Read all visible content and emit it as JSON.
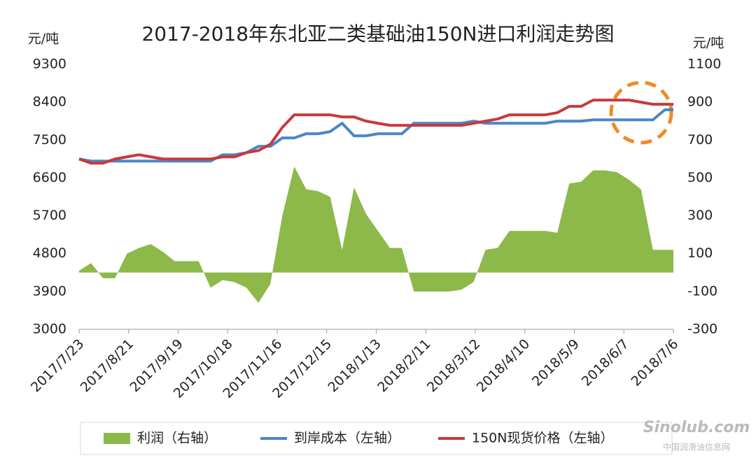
{
  "chart_data": {
    "type": "line",
    "title": "2017-2018年东北亚二类基础油150N进口利润走势图",
    "y_label": "元/吨",
    "y2_label": "元/吨",
    "x": [
      "2017/7/23",
      "2017/7/30",
      "2017/8/6",
      "2017/8/13",
      "2017/8/20",
      "2017/8/27",
      "2017/9/3",
      "2017/9/10",
      "2017/9/17",
      "2017/9/24",
      "2017/10/1",
      "2017/10/8",
      "2017/10/15",
      "2017/10/22",
      "2017/10/29",
      "2017/11/5",
      "2017/11/12",
      "2017/11/19",
      "2017/11/26",
      "2017/12/3",
      "2017/12/10",
      "2017/12/17",
      "2017/12/24",
      "2017/12/31",
      "2018/1/7",
      "2018/1/14",
      "2018/1/21",
      "2018/1/28",
      "2018/2/4",
      "2018/2/11",
      "2018/2/18",
      "2018/2/25",
      "2018/3/4",
      "2018/3/11",
      "2018/3/18",
      "2018/3/25",
      "2018/4/1",
      "2018/4/8",
      "2018/4/15",
      "2018/4/22",
      "2018/4/29",
      "2018/5/6",
      "2018/5/13",
      "2018/5/20",
      "2018/5/27",
      "2018/6/3",
      "2018/6/10",
      "2018/6/17",
      "2018/6/24",
      "2018/7/1",
      "2018/7/6"
    ],
    "xlim": [
      "2017/7/23",
      "2018/7/6"
    ],
    "xticks": [
      "2017/7/23",
      "2017/8/21",
      "2017/9/19",
      "2017/10/18",
      "2017/11/16",
      "2017/12/15",
      "2018/1/13",
      "2018/2/11",
      "2018/3/12",
      "2018/4/10",
      "2018/5/9",
      "2018/6/7",
      "2018/7/6"
    ],
    "ylim": [
      3000,
      9300
    ],
    "yticks": [
      3000,
      3900,
      4800,
      5700,
      6600,
      7500,
      8400,
      9300
    ],
    "y2lim": [
      -300,
      1100
    ],
    "y2ticks": [
      -300,
      -100,
      100,
      300,
      500,
      700,
      900,
      1100
    ],
    "series": [
      {
        "name": "利润（右轴）",
        "type": "area",
        "axis": "y2",
        "color": "#8db84a",
        "values": [
          10,
          50,
          -30,
          -30,
          100,
          130,
          150,
          110,
          60,
          60,
          60,
          -80,
          -40,
          -50,
          -80,
          -160,
          -60,
          300,
          560,
          440,
          430,
          400,
          120,
          450,
          310,
          220,
          130,
          130,
          -100,
          -100,
          -100,
          -100,
          -90,
          -50,
          120,
          130,
          220,
          220,
          220,
          220,
          210,
          470,
          480,
          540,
          540,
          530,
          490,
          440,
          120,
          120,
          120
        ]
      },
      {
        "name": "到岸成本（左轴）",
        "type": "line",
        "color": "#4a86c8",
        "values": [
          7050,
          7000,
          7000,
          7000,
          7000,
          7000,
          7000,
          7000,
          7000,
          7000,
          7000,
          7000,
          7150,
          7150,
          7200,
          7350,
          7350,
          7550,
          7550,
          7650,
          7650,
          7700,
          7900,
          7600,
          7600,
          7650,
          7650,
          7650,
          7900,
          7900,
          7900,
          7900,
          7900,
          7950,
          7900,
          7900,
          7900,
          7900,
          7900,
          7900,
          7950,
          7950,
          7950,
          7980,
          7980,
          7980,
          7980,
          7980,
          7980,
          8220,
          8220
        ]
      },
      {
        "name": "150N现货价格（左轴）",
        "type": "line",
        "color": "#c9393b",
        "values": [
          7050,
          6950,
          6950,
          7050,
          7100,
          7150,
          7100,
          7050,
          7050,
          7050,
          7050,
          7050,
          7100,
          7100,
          7200,
          7250,
          7400,
          7800,
          8100,
          8100,
          8100,
          8100,
          8050,
          8050,
          7950,
          7900,
          7850,
          7850,
          7850,
          7850,
          7850,
          7850,
          7850,
          7900,
          7950,
          8000,
          8100,
          8100,
          8100,
          8100,
          8150,
          8300,
          8300,
          8450,
          8450,
          8450,
          8450,
          8400,
          8350,
          8350,
          8350
        ]
      }
    ]
  },
  "watermark": {
    "logo": "Sinolub.com",
    "text": "中国润滑油信息网"
  }
}
